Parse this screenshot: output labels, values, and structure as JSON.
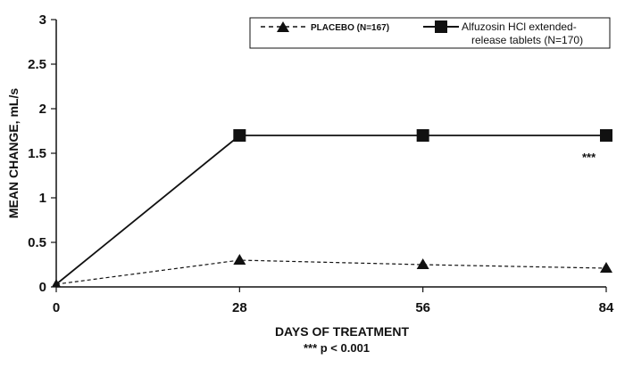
{
  "chart_data": {
    "type": "line",
    "xlabel": "DAYS OF TREATMENT",
    "ylabel": "MEAN CHANGE, mL/s",
    "footnote": "***  p < 0.001",
    "annotation": "***",
    "x": [
      0,
      28,
      56,
      84
    ],
    "x_ticks": [
      "0",
      "28",
      "56",
      "84"
    ],
    "y_ticks": [
      "0",
      "0.5",
      "1",
      "1.5",
      "2",
      "2.5",
      "3"
    ],
    "xlim": [
      0,
      84
    ],
    "ylim": [
      0,
      3
    ],
    "grid": false,
    "legend_position": "top-right",
    "series": [
      {
        "name": "PLACEBO (N=167)",
        "values": [
          0.03,
          0.3,
          0.25,
          0.21
        ],
        "marker": "triangle",
        "line_style": "dashed"
      },
      {
        "name_line1": "Alfuzosin HCl extended-",
        "name_line2": "release tablets (N=170)",
        "values": [
          0.03,
          1.7,
          1.7,
          1.7
        ],
        "marker": "square",
        "line_style": "solid"
      }
    ]
  }
}
